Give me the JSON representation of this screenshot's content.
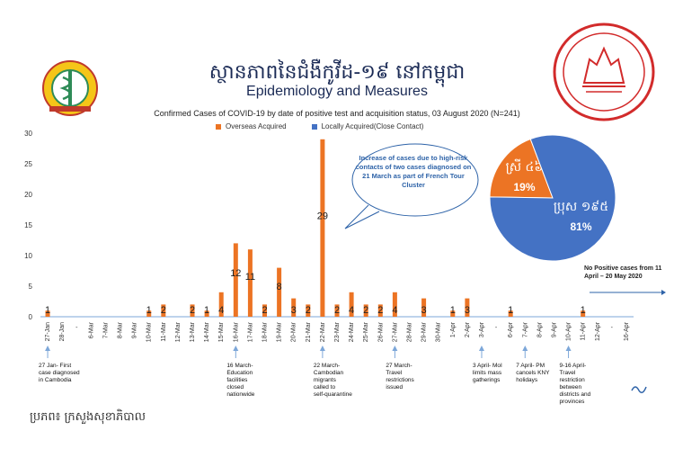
{
  "header": {
    "title_khmer": "ស្ថានភាពនៃជំងឺកូវីដ-១៩ នៅកម្ពុជា",
    "title_en": "Epidemiology and Measures",
    "subtitle": "Confirmed Cases of COVID-19 by date of positive test and acquisition status, 03 August 2020 (N=241)"
  },
  "source": "ប្រភព៖ ក្រសួងសុខាភិបាល",
  "colors": {
    "overseas": "#ec7424",
    "local": "#4472c4",
    "axis": "#7da7d9",
    "callout": "#2e63a8"
  },
  "chart_data": {
    "type": "bar",
    "title": "Confirmed Cases of COVID-19 by date of positive test and acquisition status, 03 August 2020 (N=241)",
    "legend": [
      "Overseas Acquired",
      "Locally Acquired(Close Contact)"
    ],
    "ylim": [
      0,
      30
    ],
    "yticks": [
      0,
      5,
      10,
      15,
      20,
      25,
      30
    ],
    "categories": [
      "27-Jan",
      "28-Jan",
      "",
      "6-Mar",
      "7-Mar",
      "8-Mar",
      "9-Mar",
      "10-Mar",
      "11-Mar",
      "12-Mar",
      "13-Mar",
      "14-Mar",
      "15-Mar",
      "16-Mar",
      "17-Mar",
      "18-Mar",
      "19-Mar",
      "20-Mar",
      "21-Mar",
      "22-Mar",
      "23-Mar",
      "24-Mar",
      "25-Mar",
      "26-Mar",
      "27-Mar",
      "28-Mar",
      "29-Mar",
      "30-Mar",
      "1-Apr",
      "2-Apr",
      "3-Apr",
      "",
      "6-Apr",
      "7-Apr",
      "8-Apr",
      "9-Apr",
      "10-Apr",
      "11-Apr",
      "12-Apr",
      "",
      "16-Apr"
    ],
    "values": [
      1,
      null,
      null,
      null,
      null,
      null,
      null,
      1,
      2,
      null,
      2,
      1,
      4,
      12,
      11,
      2,
      8,
      3,
      2,
      29,
      2,
      4,
      2,
      2,
      4,
      null,
      3,
      null,
      1,
      3,
      null,
      null,
      1,
      null,
      null,
      null,
      null,
      1,
      null,
      null,
      null
    ],
    "pie": {
      "slices": [
        {
          "label": "ស្រី ៤៦",
          "value": 19,
          "display": "19%"
        },
        {
          "label": "ប្រុស ១៩៥",
          "value": 81,
          "display": "81%"
        }
      ]
    }
  },
  "callout": "Increase of cases due to high-risk contacts of two cases diagnosed on 21 March as part of French Tour Cluster",
  "no_positive": "No Positive cases from 11 April – 20 May 2020",
  "annotations": [
    {
      "cat": 0,
      "text": "27 Jan- First case diagnosed in Cambodia"
    },
    {
      "cat": 13,
      "text": "16 March- Education facilities closed nationwide"
    },
    {
      "cat": 19,
      "text": "22 March- Cambodian migrants called to self-quarantine"
    },
    {
      "cat": 24,
      "text": "27 March- Travel restrictions issued"
    },
    {
      "cat": 30,
      "text": "3 April- MoI limits mass gatherings"
    },
    {
      "cat": 33,
      "text": "7 April- PM cancels KNY holidays"
    },
    {
      "cat": 36,
      "text": "9-16 April- Travel restriction between districts and provinces"
    }
  ]
}
